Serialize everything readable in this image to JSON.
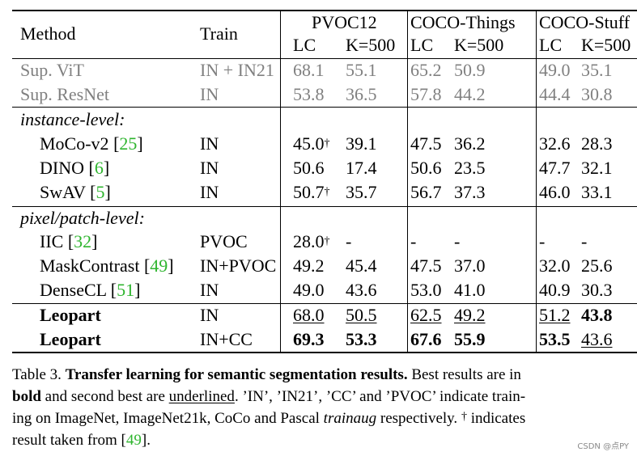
{
  "table": {
    "header": {
      "method": "Method",
      "train": "Train",
      "groups": [
        "PVOC12",
        "COCO-Things",
        "COCO-Stuff"
      ],
      "sub": [
        "LC",
        "K=500",
        "LC",
        "K=500",
        "LC",
        "K=500"
      ]
    },
    "supervised": [
      {
        "method": "Sup. ViT",
        "train": "IN + IN21",
        "values": [
          "68.1",
          "55.1",
          "65.2",
          "50.9",
          "49.0",
          "35.1"
        ]
      },
      {
        "method": "Sup. ResNet",
        "train": "IN",
        "values": [
          "53.8",
          "36.5",
          "57.8",
          "44.2",
          "44.4",
          "30.8"
        ]
      }
    ],
    "instance_label": "instance-level:",
    "instance": [
      {
        "method": "MoCo-v2",
        "ref": "25",
        "train": "IN",
        "values": [
          "45.0",
          "39.1",
          "47.5",
          "36.2",
          "32.6",
          "28.3"
        ],
        "dagger": "†"
      },
      {
        "method": "DINO",
        "ref": "6",
        "train": "IN",
        "values": [
          "50.6",
          "17.4",
          "50.6",
          "23.5",
          "47.7",
          "32.1"
        ]
      },
      {
        "method": "SwAV",
        "ref": "5",
        "train": "IN",
        "values": [
          "50.7",
          "35.7",
          "56.7",
          "37.3",
          "46.0",
          "33.1"
        ],
        "dagger": "†"
      }
    ],
    "pixel_label": "pixel/patch-level:",
    "pixel": [
      {
        "method": "IIC",
        "ref": "32",
        "train": "PVOC",
        "values": [
          "28.0",
          "-",
          "-",
          "-",
          "-",
          "-"
        ],
        "dagger": "†"
      },
      {
        "method": "MaskContrast",
        "ref": "49",
        "train": "IN+PVOC",
        "values": [
          "49.2",
          "45.4",
          "47.5",
          "37.0",
          "32.0",
          "25.6"
        ]
      },
      {
        "method": "DenseCL",
        "ref": "51",
        "train": "IN",
        "values": [
          "49.0",
          "43.6",
          "53.0",
          "41.0",
          "40.9",
          "30.3"
        ]
      }
    ],
    "ours": [
      {
        "method": "Leopart",
        "train": "IN",
        "values": [
          "68.0",
          "50.5",
          "62.5",
          "49.2",
          "51.2",
          "43.8"
        ]
      },
      {
        "method": "Leopart",
        "train": "IN+CC",
        "values": [
          "69.3",
          "53.3",
          "67.6",
          "55.9",
          "53.5",
          "43.6"
        ]
      }
    ]
  },
  "caption": {
    "label": "Table 3.",
    "title": "Transfer learning for semantic segmentation results.",
    "t1": " Best results are in",
    "bold_word": "bold",
    "t2": " and second best are ",
    "underlined_word": "underlined",
    "t3": ". ’IN’, ’IN21’, ’CC’ and ’PVOC’ indicate train-",
    "t4": "ing on ImageNet, ImageNet21k, CoCo and Pascal ",
    "trainaug": "trainaug",
    "t5": " respectively. ",
    "dagger": "†",
    "t6": " indicates",
    "t7": "result taken from [",
    "ref": "49",
    "t8": "]."
  },
  "watermark": "CSDN @点PY"
}
